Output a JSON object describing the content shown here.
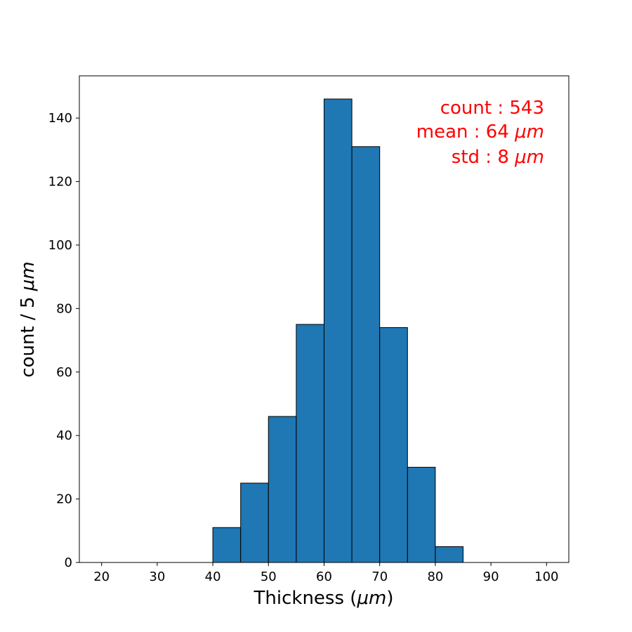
{
  "chart_data": {
    "type": "bar",
    "bin_edges": [
      40,
      45,
      50,
      55,
      60,
      65,
      70,
      75,
      80,
      85
    ],
    "values": [
      11,
      25,
      46,
      75,
      146,
      131,
      74,
      30,
      5
    ],
    "xlabel_prefix": "Thickness (",
    "xlabel_unit": "μm",
    "xlabel_suffix": ")",
    "ylabel_prefix": "count / 5 ",
    "ylabel_unit": "μm",
    "xlim": [
      16,
      104
    ],
    "ylim": [
      0,
      153.3
    ],
    "xticks": [
      20,
      30,
      40,
      50,
      60,
      70,
      80,
      90,
      100
    ],
    "yticks": [
      0,
      20,
      40,
      60,
      80,
      100,
      120,
      140
    ],
    "grid": false,
    "bar_color": "#1f77b4",
    "edge_color": "#000000",
    "annotations": {
      "color": "#ff0000",
      "count_text": "count : 543",
      "mean_text": "mean : 64 ",
      "mean_unit": "μm",
      "std_text": "std : 8 ",
      "std_unit": "μm"
    }
  }
}
